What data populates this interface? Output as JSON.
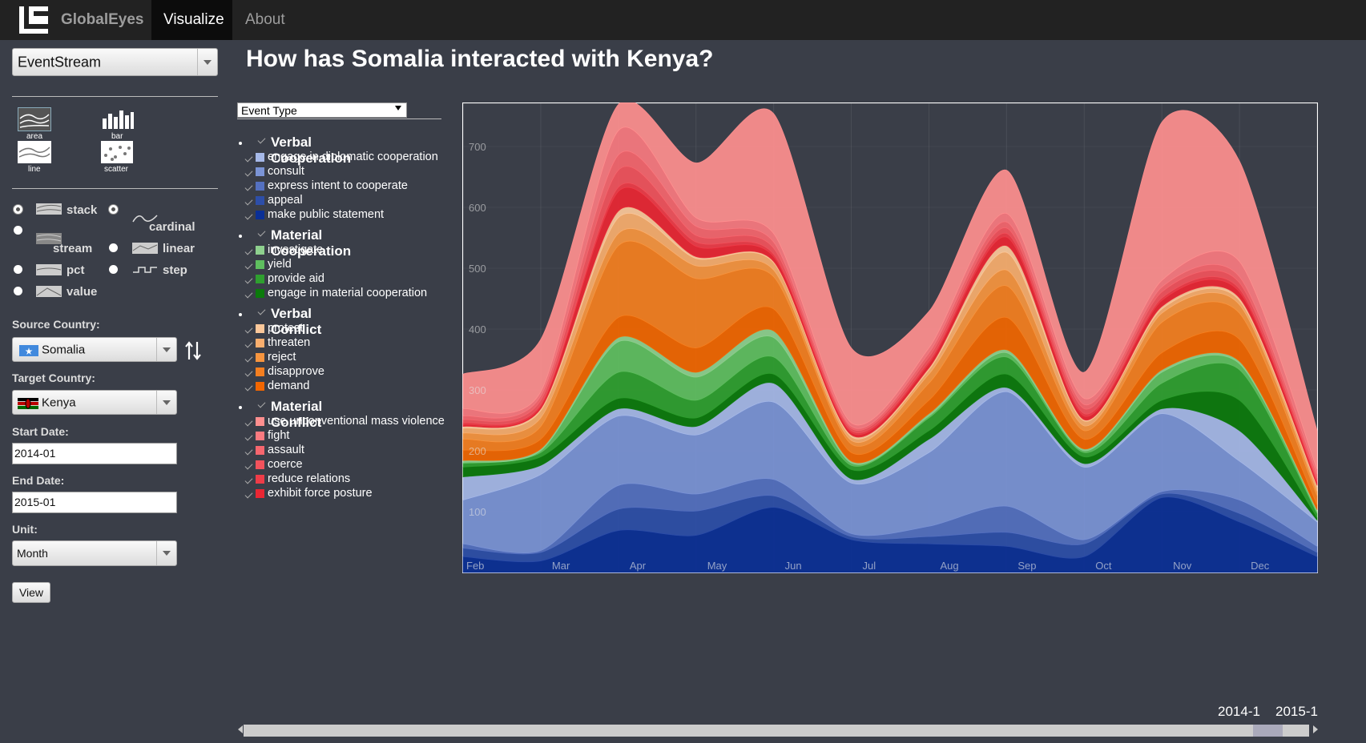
{
  "nav": {
    "brand": "GlobalEyes",
    "tabs": [
      "Visualize",
      "About"
    ]
  },
  "sidebar": {
    "view": "EventStream",
    "chart_types": [
      "area",
      "bar",
      "line",
      "scatter"
    ],
    "offsets": [
      "stack",
      "cardinal",
      "stream",
      "linear",
      "pct",
      "step",
      "value"
    ],
    "source_label": "Source Country:",
    "source": "Somalia",
    "target_label": "Target Country:",
    "target": "Kenya",
    "start_label": "Start Date:",
    "start": "2014-01",
    "end_label": "End Date:",
    "end": "2015-01",
    "unit_label": "Unit:",
    "unit": "Month",
    "button": "View"
  },
  "slider": {
    "start": "2014-1",
    "end": "2015-1"
  },
  "chart_data": {
    "type": "area",
    "stacked": true,
    "title": "How has Somalia interacted with Kenya?",
    "legend_title": "Event Type",
    "categories": [
      "Feb",
      "Mar",
      "Apr",
      "May",
      "Jun",
      "Jul",
      "Aug",
      "Sep",
      "Oct",
      "Nov",
      "Dec",
      null
    ],
    "ylim": [
      0,
      771
    ],
    "yticks": [
      100,
      200,
      300,
      400,
      500,
      600,
      700
    ],
    "groups": [
      {
        "name": "Verbal Cooperation",
        "series": [
          {
            "name": "engage in diplomatic cooperation",
            "color": "#a6b9e8",
            "values": [
              38,
              15,
              12,
              14,
              31,
              7,
              22,
              7,
              6,
              8,
              50,
              3
            ]
          },
          {
            "name": "consult",
            "color": "#7b94d6",
            "values": [
              72,
              125,
              114,
              97,
              127,
              83,
              121,
              188,
              119,
              128,
              64,
              40
            ]
          },
          {
            "name": "express intent to cooperate",
            "color": "#5470c0",
            "values": [
              7,
              3,
              39,
              28,
              27,
              5,
              17,
              43,
              7,
              4,
              22,
              10
            ]
          },
          {
            "name": "appeal",
            "color": "#2d4ea8",
            "values": [
              14,
              14,
              35,
              40,
              19,
              5,
              12,
              23,
              21,
              6,
              14,
              7
            ]
          },
          {
            "name": "make public statement",
            "color": "#0a2f96",
            "values": [
              26,
              19,
              69,
              61,
              107,
              54,
              47,
              43,
              26,
              123,
              83,
              26
            ]
          }
        ]
      },
      {
        "name": "Material Cooperation",
        "series": [
          {
            "name": "investigate",
            "color": "#8ed08e",
            "values": [
              3,
              3,
              7,
              8,
              11,
              3,
              4,
              5,
              3,
              4,
              4,
              3
            ]
          },
          {
            "name": "yield",
            "color": "#5fbf5f",
            "values": [
              2,
              3,
              50,
              38,
              32,
              4,
              3,
              7,
              3,
              18,
              10,
              3
            ]
          },
          {
            "name": "provide aid",
            "color": "#2f9f2f",
            "values": [
              6,
              7,
              43,
              29,
              28,
              7,
              21,
              28,
              7,
              28,
              50,
              7
            ]
          },
          {
            "name": "engage in material cooperation",
            "color": "#0b7a0b",
            "values": [
              16,
              14,
              17,
              14,
              15,
              15,
              14,
              22,
              11,
              14,
              50,
              4
            ]
          }
        ]
      },
      {
        "name": "Verbal Conflict",
        "series": [
          {
            "name": "protest",
            "color": "#fcc89a",
            "values": [
              3,
              3,
              11,
              3,
              2,
              3,
              3,
              11,
              2,
              4,
              4,
              3
            ]
          },
          {
            "name": "threaten",
            "color": "#f9ae6e",
            "values": [
              8,
              12,
              26,
              12,
              12,
              6,
              7,
              29,
              8,
              7,
              7,
              7
            ]
          },
          {
            "name": "reject",
            "color": "#f7953f",
            "values": [
              10,
              14,
              20,
              21,
              11,
              6,
              15,
              26,
              8,
              15,
              14,
              7
            ]
          },
          {
            "name": "disapprove",
            "color": "#f57f20",
            "values": [
              18,
              21,
              118,
              114,
              53,
              14,
              28,
              52,
              14,
              50,
              43,
              15
            ]
          },
          {
            "name": "demand",
            "color": "#f26600",
            "values": [
              17,
              16,
              33,
              40,
              36,
              14,
              22,
              53,
              16,
              28,
              36,
              8
            ]
          }
        ]
      },
      {
        "name": "Material Conflict",
        "series": [
          {
            "name": "use unconventional mass violence",
            "color": "#ff8f8f",
            "values": [
              57,
              86,
              43,
              90,
              197,
              123,
              60,
              71,
              43,
              260,
              165,
              64
            ]
          },
          {
            "name": "fight",
            "color": "#fa7a80",
            "values": [
              12,
              7,
              40,
              14,
              14,
              6,
              8,
              14,
              10,
              11,
              25,
              8
            ]
          },
          {
            "name": "assault",
            "color": "#f6666e",
            "values": [
              6,
              7,
              25,
              15,
              10,
              3,
              7,
              10,
              7,
              8,
              10,
              7
            ]
          },
          {
            "name": "coerce",
            "color": "#f2525c",
            "values": [
              5,
              7,
              28,
              11,
              10,
              4,
              7,
              9,
              8,
              10,
              10,
              4
            ]
          },
          {
            "name": "reduce relations",
            "color": "#ee3c48",
            "values": [
              3,
              3,
              7,
              7,
              4,
              3,
              4,
              6,
              4,
              4,
              5,
              3
            ]
          },
          {
            "name": "exhibit force posture",
            "color": "#ea2633",
            "values": [
              3,
              4,
              32,
              17,
              8,
              4,
              7,
              14,
              6,
              10,
              10,
              4
            ]
          }
        ]
      }
    ]
  }
}
